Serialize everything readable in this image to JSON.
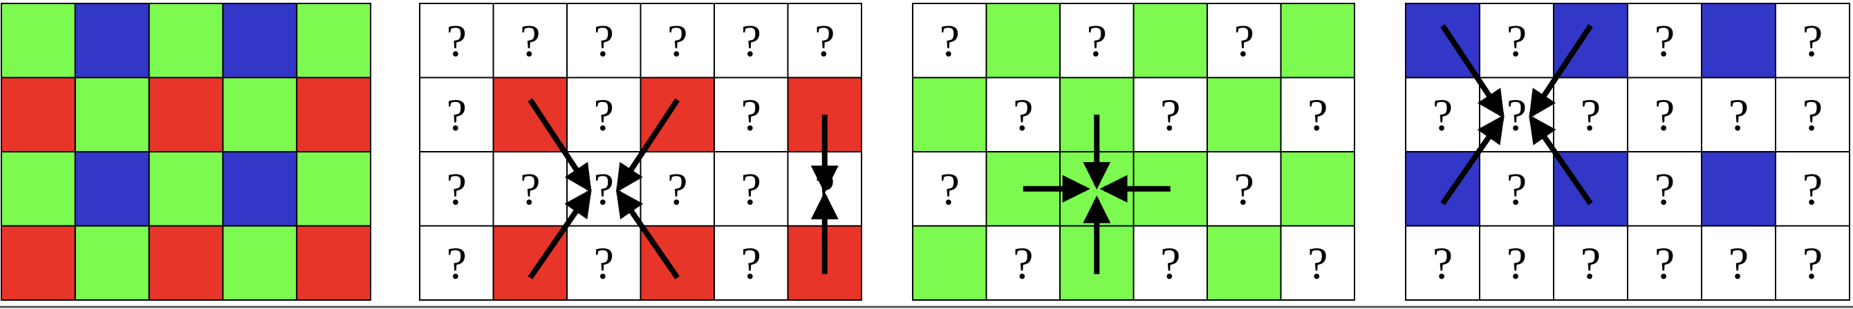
{
  "colors": {
    "R": "#e8352a",
    "G": "#7cfa4f",
    "B": "#3237c8",
    "W": "#ffffff",
    "grid_line": "#000000",
    "arrow": "#000000"
  },
  "unknown_marker": "?",
  "panels": [
    {
      "id": "bayer-mosaic",
      "cells": [
        [
          "G",
          "B",
          "G",
          "B",
          "G"
        ],
        [
          "R",
          "G",
          "R",
          "G",
          "R"
        ],
        [
          "G",
          "B",
          "G",
          "B",
          "G"
        ],
        [
          "R",
          "G",
          "R",
          "G",
          "R"
        ]
      ],
      "unknown": [
        [
          0,
          0,
          0,
          0,
          0
        ],
        [
          0,
          0,
          0,
          0,
          0
        ],
        [
          0,
          0,
          0,
          0,
          0
        ],
        [
          0,
          0,
          0,
          0,
          0
        ]
      ],
      "arrows": []
    },
    {
      "id": "red-channel-interpolation",
      "cells": [
        [
          "W",
          "W",
          "W",
          "W",
          "W",
          "W"
        ],
        [
          "W",
          "R",
          "W",
          "R",
          "W",
          "R"
        ],
        [
          "W",
          "W",
          "W",
          "W",
          "W",
          "W"
        ],
        [
          "W",
          "R",
          "W",
          "R",
          "W",
          "R"
        ]
      ],
      "unknown": [
        [
          1,
          1,
          1,
          1,
          1,
          1
        ],
        [
          1,
          0,
          1,
          0,
          1,
          0
        ],
        [
          1,
          1,
          1,
          1,
          1,
          1
        ],
        [
          1,
          0,
          1,
          0,
          1,
          0
        ]
      ],
      "arrows": [
        {
          "from": [
            1.5,
            1.3
          ],
          "to": [
            2.3,
            2.5
          ]
        },
        {
          "from": [
            3.5,
            1.3
          ],
          "to": [
            2.7,
            2.5
          ]
        },
        {
          "from": [
            1.5,
            3.7
          ],
          "to": [
            2.3,
            2.55
          ]
        },
        {
          "from": [
            3.5,
            3.7
          ],
          "to": [
            2.7,
            2.55
          ]
        },
        {
          "from": [
            5.5,
            1.5
          ],
          "to": [
            5.5,
            2.5
          ]
        },
        {
          "from": [
            5.5,
            3.65
          ],
          "to": [
            5.5,
            2.6
          ]
        }
      ]
    },
    {
      "id": "green-channel-interpolation",
      "cells": [
        [
          "W",
          "G",
          "W",
          "G",
          "W",
          "G"
        ],
        [
          "G",
          "W",
          "G",
          "W",
          "G",
          "W"
        ],
        [
          "W",
          "G",
          "G",
          "G",
          "W",
          "G"
        ],
        [
          "G",
          "W",
          "G",
          "W",
          "G",
          "W"
        ]
      ],
      "unknown": [
        [
          1,
          0,
          1,
          0,
          1,
          0
        ],
        [
          0,
          1,
          0,
          1,
          0,
          1
        ],
        [
          1,
          0,
          0,
          0,
          1,
          0
        ],
        [
          0,
          1,
          0,
          1,
          0,
          1
        ]
      ],
      "arrows": [
        {
          "from": [
            2.5,
            1.5
          ],
          "to": [
            2.5,
            2.45
          ]
        },
        {
          "from": [
            2.5,
            3.65
          ],
          "to": [
            2.5,
            2.65
          ]
        },
        {
          "from": [
            1.5,
            2.5
          ],
          "to": [
            2.35,
            2.5
          ]
        },
        {
          "from": [
            3.5,
            2.5
          ],
          "to": [
            2.6,
            2.5
          ]
        }
      ]
    },
    {
      "id": "blue-channel-interpolation",
      "cells": [
        [
          "B",
          "W",
          "B",
          "W",
          "B",
          "W"
        ],
        [
          "W",
          "W",
          "W",
          "W",
          "W",
          "W"
        ],
        [
          "B",
          "W",
          "B",
          "W",
          "B",
          "W"
        ],
        [
          "W",
          "W",
          "W",
          "W",
          "W",
          "W"
        ]
      ],
      "unknown": [
        [
          0,
          1,
          0,
          1,
          0,
          1
        ],
        [
          1,
          1,
          1,
          1,
          1,
          1
        ],
        [
          0,
          1,
          0,
          1,
          0,
          1
        ],
        [
          1,
          1,
          1,
          1,
          1,
          1
        ]
      ],
      "arrows": [
        {
          "from": [
            0.5,
            0.3
          ],
          "to": [
            1.3,
            1.5
          ]
        },
        {
          "from": [
            2.5,
            0.3
          ],
          "to": [
            1.7,
            1.5
          ]
        },
        {
          "from": [
            0.5,
            2.7
          ],
          "to": [
            1.3,
            1.55
          ]
        },
        {
          "from": [
            2.5,
            2.7
          ],
          "to": [
            1.7,
            1.55
          ]
        }
      ]
    }
  ]
}
